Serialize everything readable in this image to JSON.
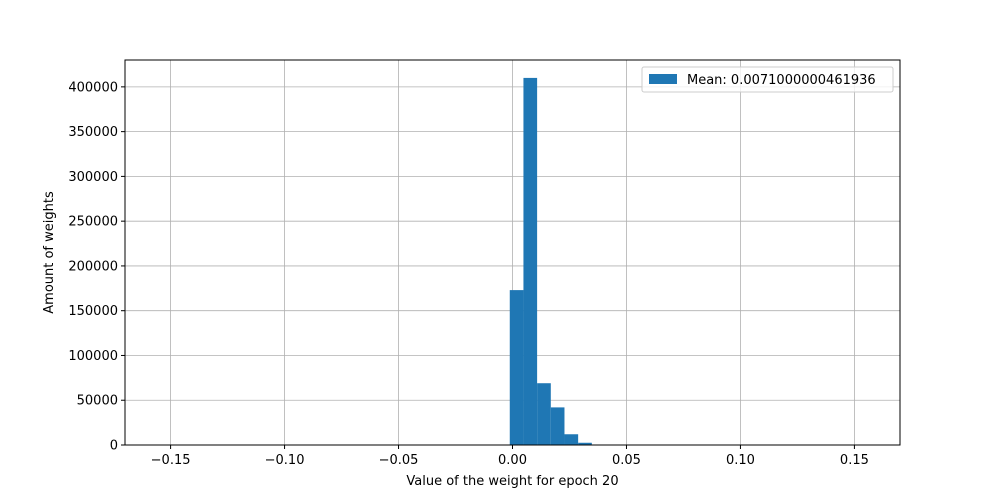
{
  "chart_data": {
    "type": "bar",
    "title": "",
    "xlabel": "Value of the weight for epoch 20",
    "ylabel": "Amount of weights",
    "xlim": [
      -0.17,
      0.17
    ],
    "ylim": [
      0,
      430000
    ],
    "grid": true,
    "legend_position": "top-right",
    "bar_color": "#1f77b4",
    "xticks": [
      {
        "value": -0.15,
        "label": "−0.15"
      },
      {
        "value": -0.1,
        "label": "−0.10"
      },
      {
        "value": -0.05,
        "label": "−0.05"
      },
      {
        "value": 0.0,
        "label": "0.00"
      },
      {
        "value": 0.05,
        "label": "0.05"
      },
      {
        "value": 0.1,
        "label": "0.10"
      },
      {
        "value": 0.15,
        "label": "0.15"
      }
    ],
    "yticks": [
      {
        "value": 0,
        "label": "0"
      },
      {
        "value": 50000,
        "label": "50000"
      },
      {
        "value": 100000,
        "label": "100000"
      },
      {
        "value": 150000,
        "label": "150000"
      },
      {
        "value": 200000,
        "label": "200000"
      },
      {
        "value": 250000,
        "label": "250000"
      },
      {
        "value": 300000,
        "label": "300000"
      },
      {
        "value": 350000,
        "label": "350000"
      },
      {
        "value": 400000,
        "label": "400000"
      }
    ],
    "series": [
      {
        "name": "Mean: 0.0071000000461936",
        "bins": [
          {
            "x0": -0.0012,
            "x1": 0.0048,
            "value": 173000
          },
          {
            "x0": 0.0048,
            "x1": 0.0108,
            "value": 410000
          },
          {
            "x0": 0.0108,
            "x1": 0.0168,
            "value": 69000
          },
          {
            "x0": 0.0168,
            "x1": 0.0228,
            "value": 42000
          },
          {
            "x0": 0.0228,
            "x1": 0.0288,
            "value": 12000
          },
          {
            "x0": 0.0288,
            "x1": 0.0348,
            "value": 2500
          }
        ]
      }
    ]
  }
}
